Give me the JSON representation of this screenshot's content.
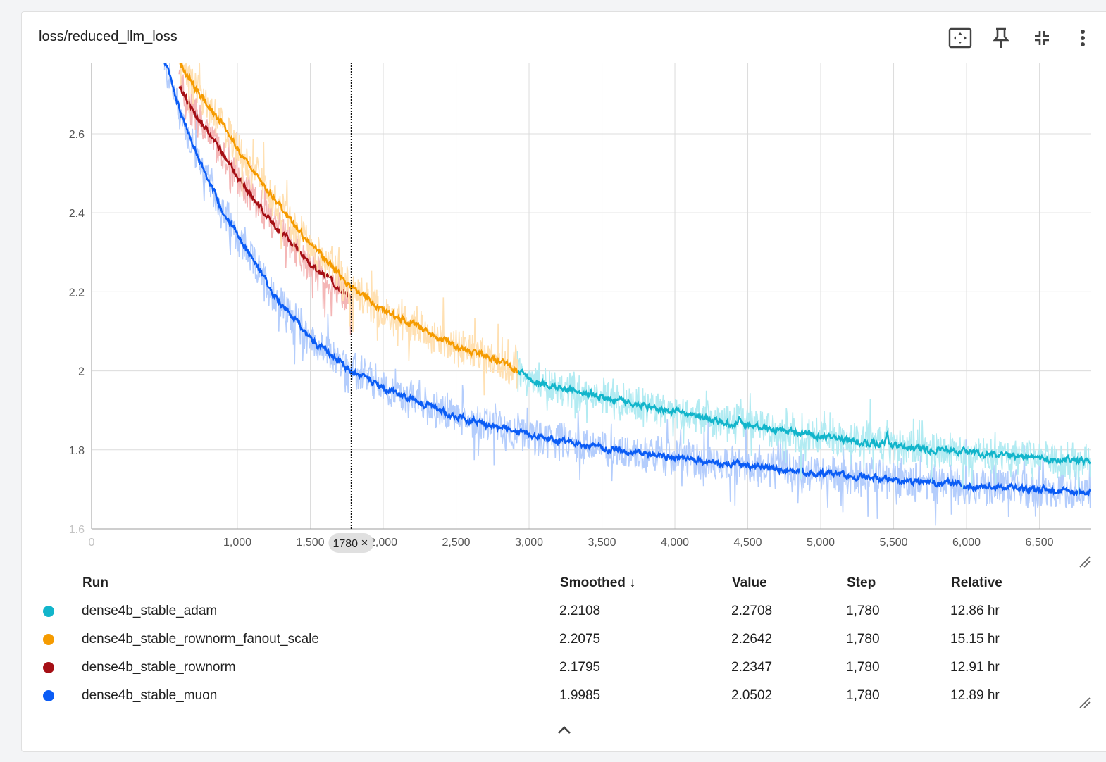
{
  "card": {
    "title": "loss/reduced_llm_loss",
    "toolbar": [
      "fit-domain-icon",
      "pin-icon",
      "collapse-card-icon",
      "more-vert-icon"
    ]
  },
  "tooltip": {
    "step_label": "1780",
    "close_symbol": "×"
  },
  "legend": {
    "headers": {
      "run": "Run",
      "smoothed": "Smoothed ↓",
      "value": "Value",
      "step": "Step",
      "relative": "Relative"
    },
    "rows": [
      {
        "run": "dense4b_stable_adam",
        "color": "#12b5cb",
        "smoothed": "2.2108",
        "value": "2.2708",
        "step": "1,780",
        "relative": "12.86 hr"
      },
      {
        "run": "dense4b_stable_rownorm_fanout_scale",
        "color": "#f59b00",
        "smoothed": "2.2075",
        "value": "2.2642",
        "step": "1,780",
        "relative": "15.15 hr"
      },
      {
        "run": "dense4b_stable_rownorm",
        "color": "#a50f15",
        "smoothed": "2.1795",
        "value": "2.2347",
        "step": "1,780",
        "relative": "12.91 hr"
      },
      {
        "run": "dense4b_stable_muon",
        "color": "#0b5cf5",
        "smoothed": "1.9985",
        "value": "2.0502",
        "step": "1,780",
        "relative": "12.89 hr"
      }
    ]
  },
  "chart_data": {
    "type": "line",
    "title": "loss/reduced_llm_loss",
    "xlabel": "",
    "ylabel": "",
    "xlim": [
      0,
      6850
    ],
    "ylim": [
      1.6,
      2.78
    ],
    "x_ticks": [
      0,
      1000,
      1500,
      2000,
      2500,
      3000,
      3500,
      4000,
      4500,
      5000,
      5500,
      6000,
      6500
    ],
    "x_tick_labels": [
      "0",
      "1,000",
      "1,500",
      "2,000",
      "2,500",
      "3,000",
      "3,500",
      "4,000",
      "4,500",
      "5,000",
      "5,500",
      "6,000",
      "6,500"
    ],
    "y_ticks": [
      1.6,
      1.8,
      2.0,
      2.2,
      2.4,
      2.6
    ],
    "y_tick_labels": [
      "1.6",
      "1.8",
      "2",
      "2.2",
      "2.4",
      "2.6"
    ],
    "grid": true,
    "hover_step": 1780,
    "series": [
      {
        "name": "dense4b_stable_adam",
        "color": "#12b5cb",
        "raw_color": "#b2ebf2",
        "x": [
          2920,
          3000,
          3250,
          3500,
          3750,
          4000,
          4250,
          4500,
          4750,
          5000,
          5250,
          5500,
          5750,
          6000,
          6250,
          6500,
          6850
        ],
        "y": [
          2.0,
          1.975,
          1.955,
          1.935,
          1.915,
          1.895,
          1.875,
          1.86,
          1.845,
          1.835,
          1.82,
          1.81,
          1.8,
          1.795,
          1.785,
          1.78,
          1.77
        ],
        "spikes": [
          {
            "x": 4440,
            "y": 1.9
          },
          {
            "x": 5450,
            "y": 1.85
          }
        ]
      },
      {
        "name": "dense4b_stable_rownorm_fanout_scale",
        "color": "#f59b00",
        "raw_color": "#ffe0b2",
        "x": [
          600,
          700,
          800,
          900,
          1000,
          1100,
          1200,
          1300,
          1400,
          1500,
          1600,
          1780,
          2000,
          2250,
          2500,
          2750,
          2920
        ],
        "y": [
          2.78,
          2.72,
          2.67,
          2.62,
          2.56,
          2.51,
          2.46,
          2.41,
          2.36,
          2.32,
          2.28,
          2.21,
          2.15,
          2.11,
          2.06,
          2.03,
          2.0
        ]
      },
      {
        "name": "dense4b_stable_rownorm",
        "color": "#a50f15",
        "raw_color": "#f4b6b6",
        "x": [
          600,
          700,
          800,
          900,
          1000,
          1100,
          1200,
          1300,
          1400,
          1500,
          1600,
          1780
        ],
        "y": [
          2.72,
          2.65,
          2.6,
          2.55,
          2.49,
          2.44,
          2.39,
          2.35,
          2.31,
          2.27,
          2.24,
          2.18
        ]
      },
      {
        "name": "dense4b_stable_muon",
        "color": "#0b5cf5",
        "raw_color": "#b4cdfc",
        "x": [
          500,
          600,
          700,
          800,
          900,
          1000,
          1100,
          1250,
          1500,
          1780,
          2000,
          2500,
          3000,
          3500,
          4000,
          4500,
          5000,
          5500,
          6000,
          6500,
          6850
        ],
        "y": [
          2.78,
          2.66,
          2.56,
          2.48,
          2.4,
          2.34,
          2.28,
          2.19,
          2.08,
          2.0,
          1.955,
          1.885,
          1.835,
          1.805,
          1.78,
          1.76,
          1.74,
          1.725,
          1.71,
          1.7,
          1.69
        ]
      }
    ]
  }
}
